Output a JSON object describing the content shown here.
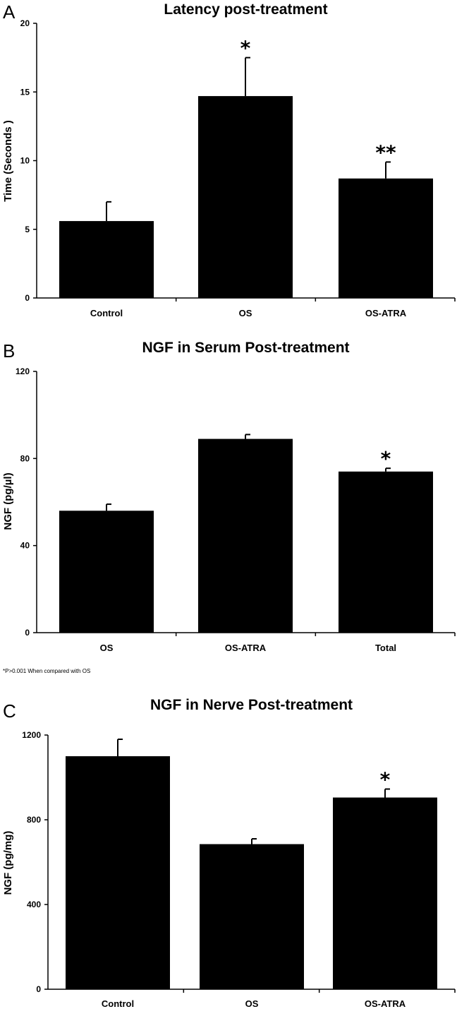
{
  "chart_data": [
    {
      "type": "bar",
      "panel": "A",
      "title": "Latency post-treatment",
      "xlabel": "",
      "ylabel": "Time (Seconds )",
      "categories": [
        "Control",
        "OS",
        "OS-ATRA"
      ],
      "values": [
        5.6,
        14.7,
        8.7
      ],
      "errors": [
        1.4,
        2.8,
        1.2
      ],
      "annotations": [
        "",
        "*",
        "**"
      ],
      "ylim": [
        0,
        20
      ],
      "yticks": [
        0,
        5,
        10,
        15,
        20
      ],
      "color": "#000000"
    },
    {
      "type": "bar",
      "panel": "B",
      "title": "NGF in Serum Post-treatment",
      "xlabel": "",
      "ylabel": "NGF (pg/µl)",
      "categories": [
        "OS",
        "OS-ATRA",
        "Total"
      ],
      "values": [
        56,
        89,
        74
      ],
      "errors": [
        3,
        2,
        1.5
      ],
      "annotations": [
        "",
        "",
        "*"
      ],
      "ylim": [
        0,
        120
      ],
      "yticks": [
        0,
        40,
        80,
        120
      ],
      "footnote": "*P>0.001  When compared with OS",
      "color": "#000000"
    },
    {
      "type": "bar",
      "panel": "C",
      "title": "NGF in Nerve Post-treatment",
      "xlabel": "",
      "ylabel": "NGF (pg/mg)",
      "categories": [
        "Control",
        "OS",
        "OS-ATRA"
      ],
      "values": [
        1100,
        685,
        905
      ],
      "errors": [
        80,
        25,
        40
      ],
      "annotations": [
        "",
        "",
        "*"
      ],
      "ylim": [
        0,
        1200
      ],
      "yticks": [
        0,
        400,
        800,
        1200
      ],
      "color": "#000000"
    }
  ]
}
